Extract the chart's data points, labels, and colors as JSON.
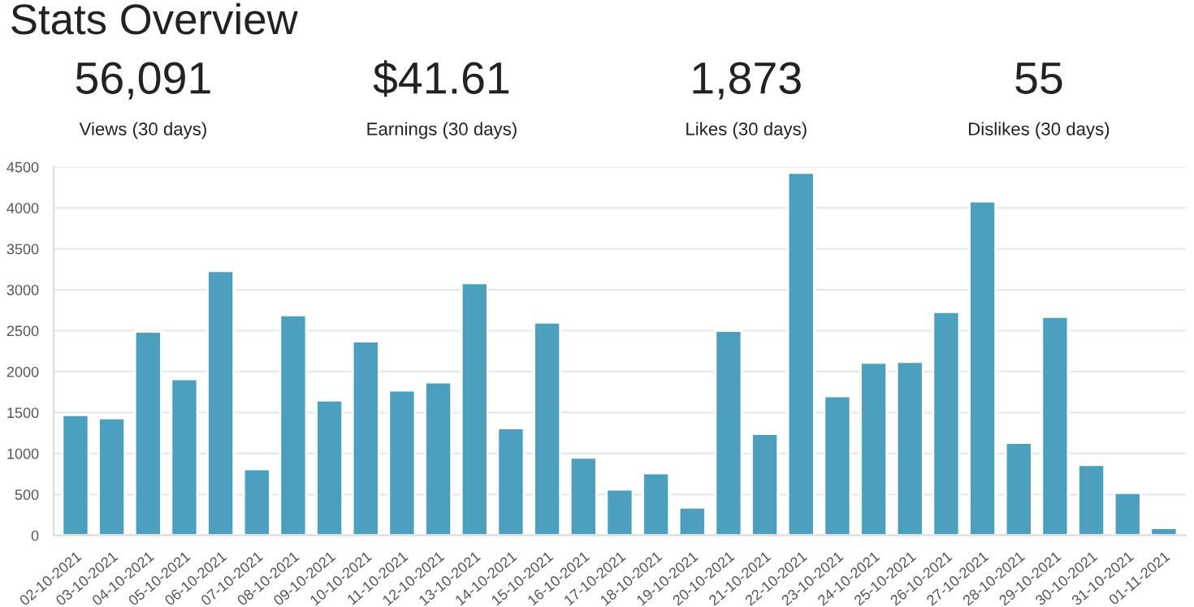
{
  "chart_data": {
    "type": "bar",
    "title": "Stats Overview",
    "annotations": [
      "56,091",
      "Views (30 days)",
      "$41.61",
      "Earnings (30 days)",
      "1,873",
      "Likes (30 days)",
      "55",
      "Dislikes (30 days)"
    ],
    "categories": [
      "02-10-2021",
      "03-10-2021",
      "04-10-2021",
      "05-10-2021",
      "06-10-2021",
      "07-10-2021",
      "08-10-2021",
      "09-10-2021",
      "10-10-2021",
      "11-10-2021",
      "12-10-2021",
      "13-10-2021",
      "14-10-2021",
      "15-10-2021",
      "16-10-2021",
      "17-10-2021",
      "18-10-2021",
      "19-10-2021",
      "20-10-2021",
      "21-10-2021",
      "22-10-2021",
      "23-10-2021",
      "24-10-2021",
      "25-10-2021",
      "26-10-2021",
      "27-10-2021",
      "28-10-2021",
      "29-10-2021",
      "30-10-2021",
      "31-10-2021",
      "01-11-2021"
    ],
    "values": [
      1470,
      1430,
      2490,
      1910,
      3230,
      810,
      2690,
      1650,
      2370,
      1770,
      1870,
      3080,
      1310,
      2600,
      950,
      560,
      760,
      340,
      2500,
      1240,
      4430,
      1700,
      2110,
      2120,
      2730,
      4080,
      1130,
      2670,
      860,
      520,
      90
    ],
    "color": "#4c9fbe",
    "ylim": [
      0,
      4500
    ],
    "yticks": [
      0,
      500,
      1000,
      1500,
      2000,
      2500,
      3000,
      3500,
      4000,
      4500
    ],
    "grid": "y"
  }
}
